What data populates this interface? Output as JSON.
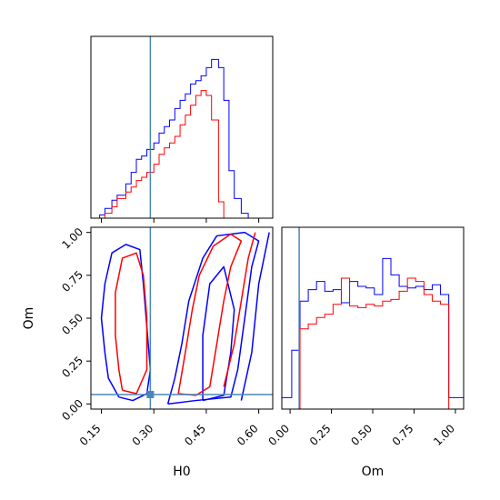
{
  "chart_data": {
    "type": "corner",
    "parameters": [
      "H0",
      "Om"
    ],
    "truths": {
      "H0": 0.29,
      "Om": 0.055
    },
    "colors": {
      "series_a": "#0000ff",
      "series_b": "#ff0000",
      "truth": "#4a86b8"
    },
    "series": [
      {
        "color_key": "series_a"
      },
      {
        "color_key": "series_b"
      }
    ],
    "panels": [
      {
        "id": "hist-h0",
        "type": "step-histogram",
        "xlim": [
          0.12,
          0.64
        ],
        "ylim": [
          0,
          1
        ],
        "show_xtick_labels": false,
        "x_ticks": [
          0.15,
          0.3,
          0.45,
          0.6
        ],
        "bin_edges": [
          0.12,
          0.145,
          0.16,
          0.18,
          0.195,
          0.22,
          0.235,
          0.25,
          0.265,
          0.28,
          0.3,
          0.315,
          0.33,
          0.345,
          0.36,
          0.375,
          0.39,
          0.405,
          0.42,
          0.435,
          0.45,
          0.465,
          0.485,
          0.5,
          0.515,
          0.53,
          0.55,
          0.57,
          0.585,
          0.6,
          0.62
        ],
        "series_counts": [
          [
            0.0,
            0.02,
            0.06,
            0.11,
            0.14,
            0.21,
            0.28,
            0.36,
            0.38,
            0.42,
            0.46,
            0.52,
            0.56,
            0.6,
            0.67,
            0.72,
            0.76,
            0.82,
            0.84,
            0.87,
            0.92,
            0.97,
            0.92,
            0.72,
            0.29,
            0.12,
            0.03,
            0.0,
            0.0,
            0.0
          ],
          [
            0.0,
            0.0,
            0.03,
            0.07,
            0.12,
            0.16,
            0.19,
            0.23,
            0.25,
            0.28,
            0.33,
            0.39,
            0.43,
            0.46,
            0.5,
            0.57,
            0.63,
            0.69,
            0.75,
            0.78,
            0.75,
            0.6,
            0.1,
            0.0,
            0.0,
            0.0,
            0.0,
            0.0,
            0.0,
            0.0
          ]
        ]
      },
      {
        "id": "contour-h0-om",
        "type": "contour",
        "xlabel": "H0",
        "ylabel": "Om",
        "xlim": [
          0.12,
          0.64
        ],
        "ylim": [
          -0.03,
          1.03
        ],
        "x_ticks": [
          0.15,
          0.3,
          0.45,
          0.6
        ],
        "x_tick_labels": [
          "0.15",
          "0.30",
          "0.45",
          "0.60"
        ],
        "y_ticks": [
          0.0,
          0.25,
          0.5,
          0.75,
          1.0
        ],
        "y_tick_labels": [
          "0.00",
          "0.25",
          "0.50",
          "0.75",
          "1.00"
        ],
        "series_contours": [
          [
            [
              [
                0.2,
                0.04
              ],
              [
                0.24,
                0.02
              ],
              [
                0.28,
                0.06
              ],
              [
                0.29,
                0.2
              ],
              [
                0.28,
                0.45
              ],
              [
                0.27,
                0.7
              ],
              [
                0.26,
                0.9
              ],
              [
                0.22,
                0.93
              ],
              [
                0.18,
                0.88
              ],
              [
                0.16,
                0.7
              ],
              [
                0.15,
                0.5
              ],
              [
                0.16,
                0.3
              ],
              [
                0.17,
                0.15
              ],
              [
                0.2,
                0.04
              ]
            ],
            [
              [
                0.34,
                0.0
              ],
              [
                0.42,
                0.02
              ],
              [
                0.52,
                0.04
              ],
              [
                0.54,
                0.2
              ],
              [
                0.56,
                0.5
              ],
              [
                0.58,
                0.8
              ],
              [
                0.6,
                0.95
              ],
              [
                0.56,
                1.0
              ],
              [
                0.48,
                0.98
              ],
              [
                0.44,
                0.85
              ],
              [
                0.4,
                0.6
              ],
              [
                0.38,
                0.35
              ],
              [
                0.36,
                0.15
              ],
              [
                0.34,
                0.0
              ]
            ],
            [
              [
                0.44,
                0.02
              ],
              [
                0.5,
                0.05
              ],
              [
                0.52,
                0.3
              ],
              [
                0.53,
                0.55
              ],
              [
                0.5,
                0.8
              ],
              [
                0.46,
                0.7
              ],
              [
                0.44,
                0.4
              ],
              [
                0.44,
                0.02
              ]
            ],
            [
              [
                0.55,
                0.02
              ],
              [
                0.58,
                0.3
              ],
              [
                0.6,
                0.7
              ],
              [
                0.63,
                1.0
              ]
            ]
          ],
          [
            [
              [
                0.21,
                0.08
              ],
              [
                0.25,
                0.06
              ],
              [
                0.28,
                0.2
              ],
              [
                0.28,
                0.5
              ],
              [
                0.27,
                0.75
              ],
              [
                0.25,
                0.88
              ],
              [
                0.21,
                0.85
              ],
              [
                0.19,
                0.65
              ],
              [
                0.19,
                0.4
              ],
              [
                0.2,
                0.2
              ],
              [
                0.21,
                0.08
              ]
            ],
            [
              [
                0.37,
                0.06
              ],
              [
                0.42,
                0.05
              ],
              [
                0.46,
                0.1
              ],
              [
                0.48,
                0.35
              ],
              [
                0.5,
                0.6
              ],
              [
                0.52,
                0.8
              ],
              [
                0.55,
                0.95
              ],
              [
                0.52,
                0.99
              ],
              [
                0.47,
                0.92
              ],
              [
                0.43,
                0.75
              ],
              [
                0.41,
                0.55
              ],
              [
                0.39,
                0.3
              ],
              [
                0.37,
                0.06
              ]
            ],
            [
              [
                0.5,
                0.1
              ],
              [
                0.53,
                0.35
              ],
              [
                0.55,
                0.6
              ],
              [
                0.57,
                0.85
              ],
              [
                0.59,
                1.0
              ]
            ]
          ]
        ]
      },
      {
        "id": "hist-om",
        "type": "step-histogram",
        "xlabel": "Om",
        "xlim": [
          -0.05,
          1.05
        ],
        "ylim": [
          0,
          1
        ],
        "x_ticks": [
          0.0,
          0.25,
          0.5,
          0.75,
          1.0
        ],
        "x_tick_labels": [
          "0.00",
          "0.25",
          "0.50",
          "0.75",
          "1.00"
        ],
        "bin_edges": [
          -0.05,
          0.01,
          0.06,
          0.11,
          0.16,
          0.21,
          0.26,
          0.31,
          0.36,
          0.41,
          0.46,
          0.51,
          0.56,
          0.61,
          0.66,
          0.71,
          0.76,
          0.81,
          0.86,
          0.91,
          0.96,
          1.01,
          1.05
        ],
        "series_counts": [
          [
            0.07,
            0.36,
            0.66,
            0.73,
            0.78,
            0.72,
            0.73,
            0.65,
            0.78,
            0.75,
            0.74,
            0.7,
            0.92,
            0.82,
            0.75,
            0.74,
            0.75,
            0.73,
            0.76,
            0.7,
            0.07,
            0.07
          ],
          [
            0.0,
            0.0,
            0.49,
            0.52,
            0.56,
            0.58,
            0.64,
            0.8,
            0.63,
            0.62,
            0.64,
            0.63,
            0.66,
            0.67,
            0.72,
            0.8,
            0.78,
            0.7,
            0.66,
            0.64,
            0.0,
            0.0
          ]
        ]
      }
    ]
  }
}
